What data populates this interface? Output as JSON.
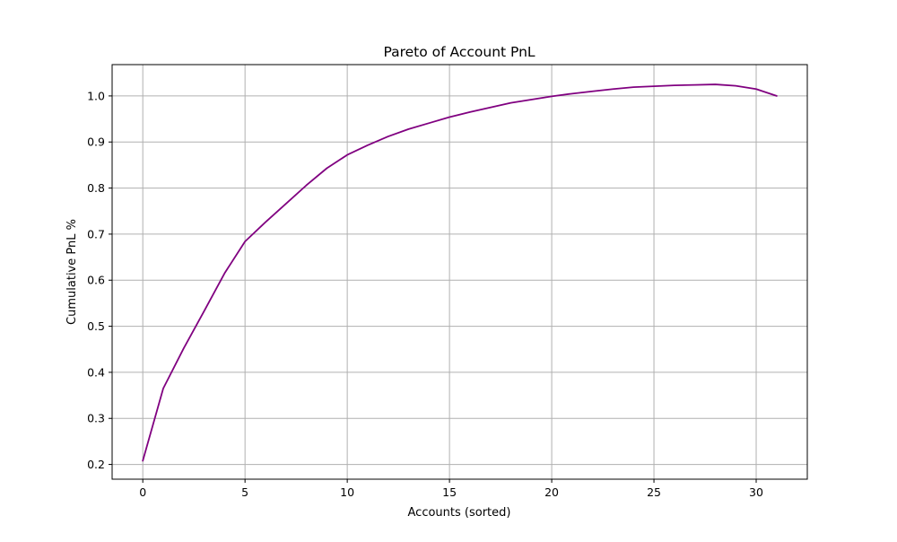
{
  "chart_data": {
    "type": "line",
    "title": "Pareto of Account PnL",
    "xlabel": "Accounts (sorted)",
    "ylabel": "Cumulative PnL %",
    "xlim": [
      -1.5,
      32.5
    ],
    "ylim": [
      0.168,
      1.068
    ],
    "x_ticks": [
      0,
      5,
      10,
      15,
      20,
      25,
      30
    ],
    "y_ticks": [
      0.2,
      0.3,
      0.4,
      0.5,
      0.6,
      0.7,
      0.8,
      0.9,
      1.0
    ],
    "x_tick_labels": [
      "0",
      "5",
      "10",
      "15",
      "20",
      "25",
      "30"
    ],
    "y_tick_labels": [
      "0.2",
      "0.3",
      "0.4",
      "0.5",
      "0.6",
      "0.7",
      "0.8",
      "0.9",
      "1.0"
    ],
    "grid": true,
    "line_color": "#800080",
    "series": [
      {
        "x": [
          0,
          1,
          2,
          3,
          4,
          5,
          6,
          7,
          8,
          9,
          10,
          11,
          12,
          13,
          14,
          15,
          16,
          17,
          18,
          19,
          20,
          21,
          22,
          23,
          24,
          25,
          26,
          27,
          28,
          29,
          30,
          31
        ],
        "values": [
          0.208,
          0.365,
          0.452,
          0.533,
          0.615,
          0.684,
          0.726,
          0.766,
          0.806,
          0.843,
          0.872,
          0.893,
          0.912,
          0.928,
          0.941,
          0.954,
          0.965,
          0.975,
          0.985,
          0.992,
          0.999,
          1.005,
          1.01,
          1.015,
          1.019,
          1.021,
          1.023,
          1.024,
          1.025,
          1.022,
          1.015,
          1.0
        ]
      }
    ]
  }
}
